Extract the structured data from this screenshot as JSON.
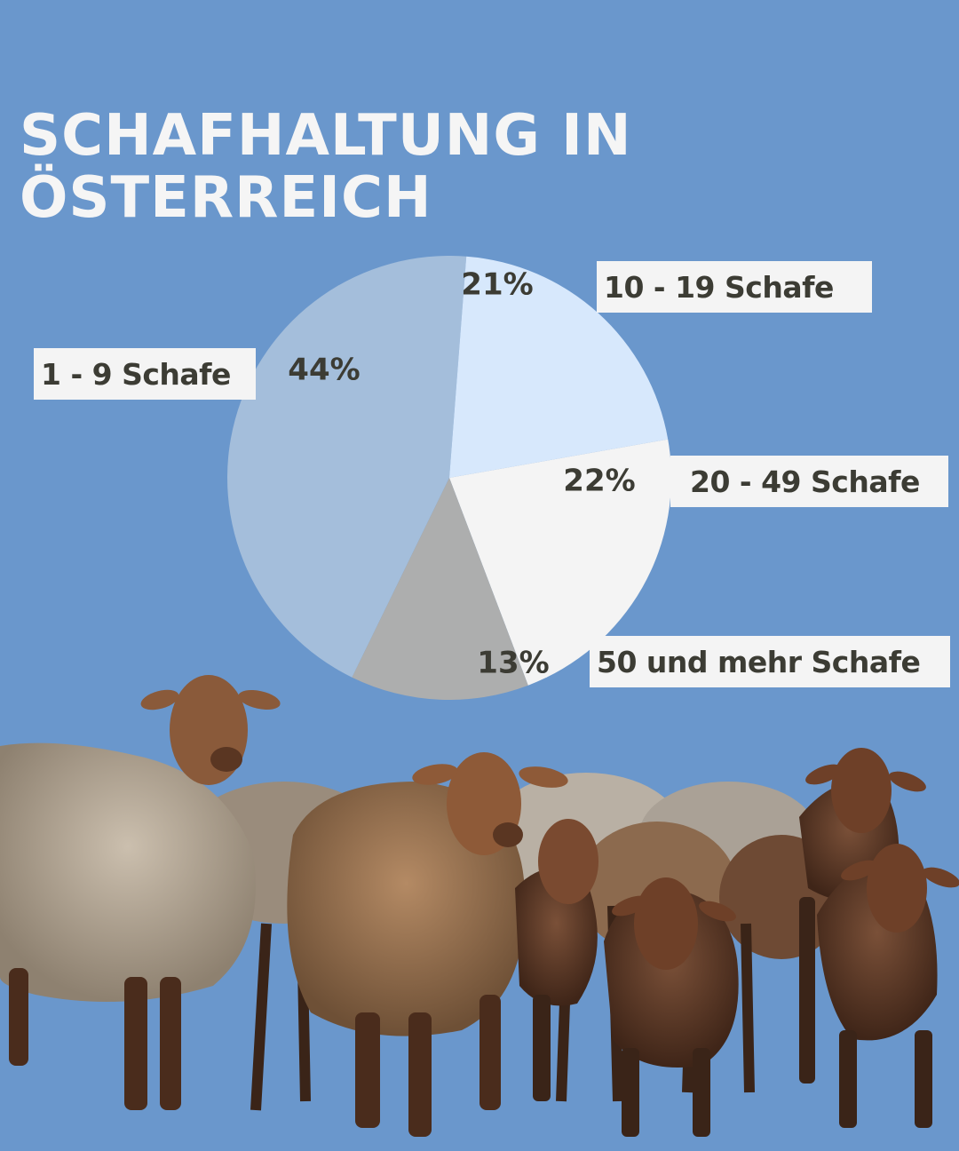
{
  "title": {
    "line1": "SCHAFHALTUNG IN",
    "line2": "ÖSTERREICH"
  },
  "colors": {
    "background": "#6a97cc",
    "slice_1_9": "#a4bedb",
    "slice_10_19": "#d7e8fc",
    "slice_20_49": "#f4f4f4",
    "slice_50_plus": "#adaeae",
    "label_text": "#3c3c34",
    "title_text": "#f5f5f5"
  },
  "chart_data": {
    "type": "pie",
    "title": "SCHAFHALTUNG IN ÖSTERREICH",
    "start_angle_deg": 206,
    "direction": "clockwise",
    "slices": [
      {
        "label": "1 - 9 Schafe",
        "value": 44,
        "display": "44%",
        "color": "#a4bedb"
      },
      {
        "label": "10 - 19 Schafe",
        "value": 21,
        "display": "21%",
        "color": "#d7e8fc"
      },
      {
        "label": "20 - 49 Schafe",
        "value": 22,
        "display": "22%",
        "color": "#f4f4f4"
      },
      {
        "label": "50 und mehr Schafe",
        "value": 13,
        "display": "13%",
        "color": "#adaeae"
      }
    ]
  },
  "labels": [
    "1 - 9 Schafe",
    "10 - 19 Schafe",
    "20 - 49 Schafe",
    "50 und mehr Schafe"
  ],
  "decoration": {
    "image": "flock-of-sheep-photo"
  }
}
